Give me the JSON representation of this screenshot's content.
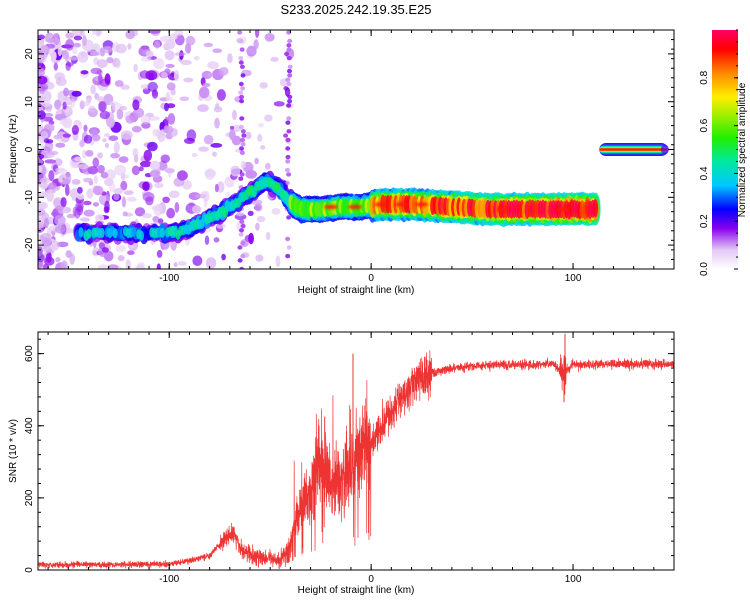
{
  "title": "S233.2025.242.19.35.E25",
  "chart_data": [
    {
      "type": "heatmap",
      "xlabel": "Height of straight line (km)",
      "ylabel": "Frequency (Hz)",
      "xlim": [
        -165,
        150
      ],
      "ylim": [
        -25,
        25
      ],
      "xticks": [
        -100,
        0,
        100
      ],
      "yticks": [
        -20,
        -10,
        0,
        10,
        20
      ],
      "colorbar": {
        "label": "Normalized spectral amplitude",
        "range": [
          0,
          1
        ],
        "ticks": [
          0.0,
          0.2,
          0.4,
          0.6,
          0.8
        ]
      },
      "noise_region_x": [
        -165,
        -40
      ],
      "track": [
        [
          -145,
          -17.5
        ],
        [
          -120,
          -17.5
        ],
        [
          -100,
          -17.5
        ],
        [
          -90,
          -16.5
        ],
        [
          -80,
          -14.5
        ],
        [
          -70,
          -12
        ],
        [
          -60,
          -9
        ],
        [
          -52,
          -6.5
        ],
        [
          -45,
          -8.5
        ],
        [
          -40,
          -11
        ],
        [
          -35,
          -12.5
        ],
        [
          -25,
          -12.5
        ],
        [
          -15,
          -12
        ],
        [
          -5,
          -12
        ],
        [
          5,
          -11.5
        ],
        [
          20,
          -11.5
        ],
        [
          40,
          -12
        ],
        [
          60,
          -12.5
        ],
        [
          80,
          -12.5
        ],
        [
          100,
          -12.5
        ],
        [
          112,
          -12.5
        ]
      ],
      "tone": {
        "x": [
          113,
          147
        ],
        "y": 0,
        "amplitude": 1.0
      }
    },
    {
      "type": "line",
      "xlabel": "Height of straight line (km)",
      "ylabel": "SNR (10 * v/v)",
      "xlim": [
        -165,
        150
      ],
      "ylim": [
        0,
        660
      ],
      "xticks": [
        -100,
        0,
        100
      ],
      "yticks": [
        0,
        200,
        400,
        600
      ],
      "series": [
        {
          "name": "SNR",
          "color": "#ee3333",
          "x": [
            -165,
            -140,
            -120,
            -100,
            -90,
            -80,
            -72,
            -68,
            -65,
            -60,
            -55,
            -50,
            -45,
            -40,
            -35,
            -30,
            -25,
            -20,
            -15,
            -10,
            -5,
            0,
            5,
            10,
            15,
            20,
            25,
            30,
            35,
            40,
            50,
            60,
            70,
            80,
            90,
            95,
            100,
            110,
            120,
            130,
            140,
            150
          ],
          "values": [
            15,
            15,
            15,
            17,
            25,
            40,
            90,
            100,
            60,
            40,
            35,
            30,
            30,
            70,
            180,
            220,
            300,
            230,
            260,
            280,
            330,
            360,
            400,
            440,
            480,
            510,
            530,
            545,
            555,
            560,
            565,
            568,
            570,
            570,
            572,
            545,
            570,
            570,
            572,
            572,
            570,
            570
          ]
        }
      ]
    }
  ],
  "colors": {
    "snr_line": "#ee3333",
    "axis": "#000000",
    "background": "#ffffff"
  }
}
